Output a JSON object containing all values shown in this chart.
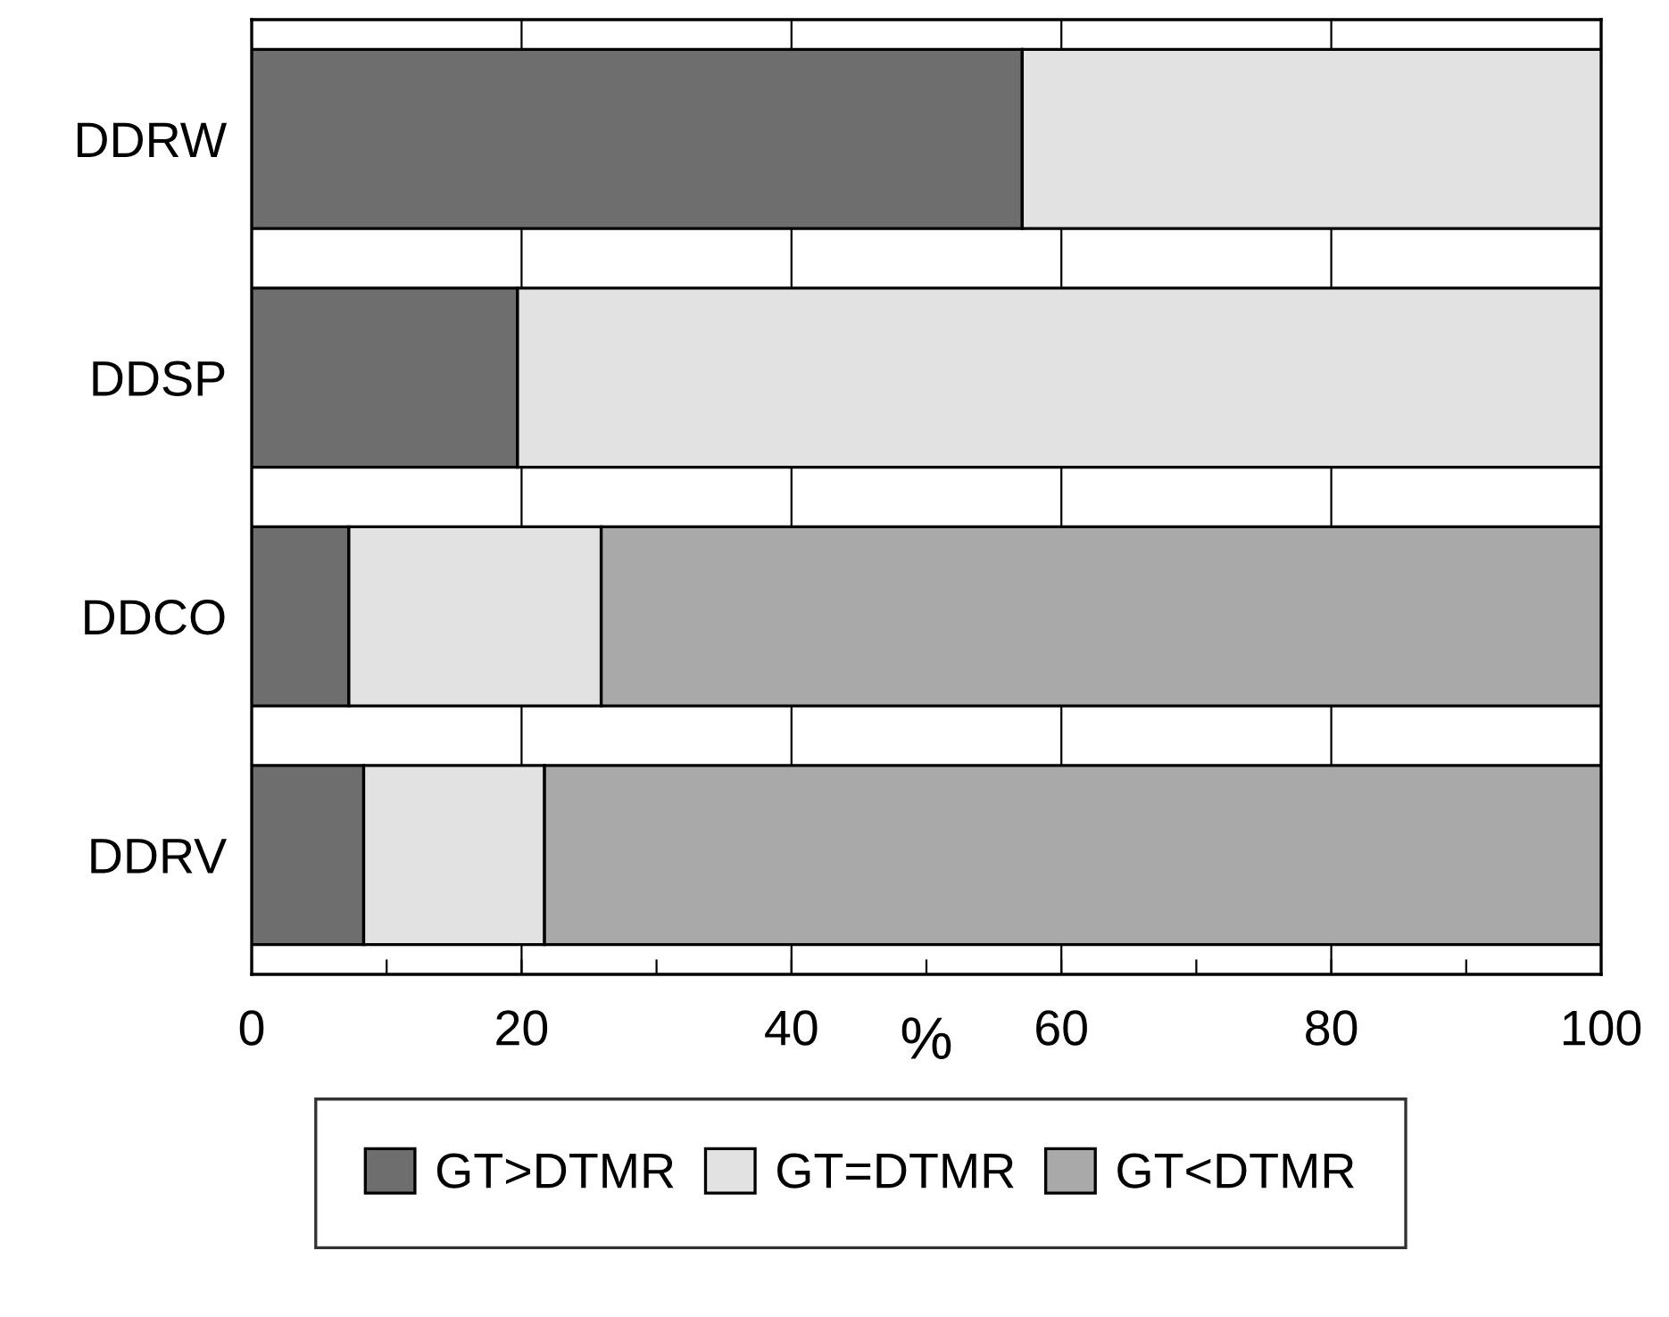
{
  "chart_data": {
    "type": "bar",
    "orientation": "horizontal",
    "stacked": true,
    "categories": [
      "DDRW",
      "DDSP",
      "DDCO",
      "DDRV"
    ],
    "series": [
      {
        "name": "GT>DTMR",
        "color": "#6e6e6e",
        "values": [
          57.1,
          19.7,
          7.2,
          8.3
        ]
      },
      {
        "name": "GT=DTMR",
        "color": "#e2e2e2",
        "values": [
          42.9,
          80.3,
          18.7,
          13.4
        ]
      },
      {
        "name": "GT<DTMR",
        "color": "#a9a9a9",
        "values": [
          null,
          null,
          74.1,
          78.3
        ]
      }
    ],
    "xlabel": "%",
    "xlim": [
      0,
      100
    ],
    "xticks": [
      0,
      {
        "value": 10,
        "label": null
      },
      20,
      {
        "value": 30,
        "label": null
      },
      40,
      {
        "value": 50,
        "label": null
      },
      60,
      {
        "value": 70,
        "label": null
      },
      80,
      {
        "value": 90,
        "label": null
      },
      100
    ],
    "grid": "x",
    "legend": "bottom"
  }
}
